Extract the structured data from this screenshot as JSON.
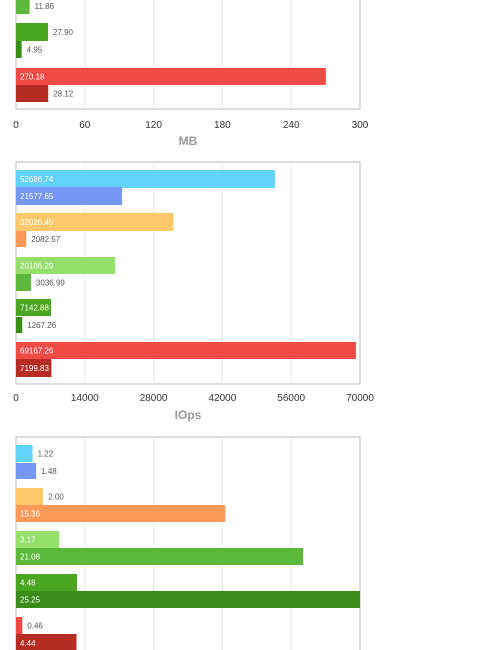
{
  "chart_data": [
    {
      "type": "bar",
      "orientation": "horizontal",
      "xlabel": "MB",
      "xlim": [
        0,
        300
      ],
      "xticks": [
        "0",
        "60",
        "120",
        "180",
        "240",
        "300"
      ],
      "grid": true,
      "bars": [
        {
          "value": 11.86,
          "label": "11.86",
          "color": "#5cb83a"
        },
        {
          "value": 27.9,
          "label": "27.90",
          "color": "#4aa520"
        },
        {
          "value": 4.95,
          "label": "4.95",
          "color": "#3a8c18"
        },
        {
          "value": 270.18,
          "label": "270.18",
          "color": "#ef4a44"
        },
        {
          "value": 28.12,
          "label": "28.12",
          "color": "#b62c23"
        }
      ]
    },
    {
      "type": "bar",
      "orientation": "horizontal",
      "xlabel": "IOps",
      "xlim": [
        0,
        70000
      ],
      "xticks": [
        "0",
        "14000",
        "28000",
        "42000",
        "56000",
        "70000"
      ],
      "grid": true,
      "bars": [
        {
          "value": 52686.74,
          "label": "52686.74",
          "color": "#62d3fa"
        },
        {
          "value": 21577.65,
          "label": "21577.65",
          "color": "#7397f3"
        },
        {
          "value": 32026.45,
          "label": "32026.45",
          "color": "#fcc869"
        },
        {
          "value": 2082.57,
          "label": "2082.57",
          "color": "#fb9a58"
        },
        {
          "value": 20186.29,
          "label": "20186.29",
          "color": "#94e06a"
        },
        {
          "value": 3036.99,
          "label": "3036.99",
          "color": "#5cb83a"
        },
        {
          "value": 7142.88,
          "label": "7142.88",
          "color": "#4aa520"
        },
        {
          "value": 1267.26,
          "label": "1267.26",
          "color": "#3a8c18"
        },
        {
          "value": 69167.26,
          "label": "69167.26",
          "color": "#ef4a44"
        },
        {
          "value": 7199.83,
          "label": "7199.83",
          "color": "#b62c23"
        }
      ]
    },
    {
      "type": "bar",
      "orientation": "horizontal",
      "xlim": [
        0,
        25.25
      ],
      "grid": true,
      "bars": [
        {
          "value": 1.22,
          "label": "1.22",
          "color": "#62d3fa"
        },
        {
          "value": 1.48,
          "label": "1.48",
          "color": "#7397f3"
        },
        {
          "value": 2.0,
          "label": "2.00",
          "color": "#fcc869"
        },
        {
          "value": 15.36,
          "label": "15.36",
          "color": "#fb9a58"
        },
        {
          "value": 3.17,
          "label": "3.17",
          "color": "#94e06a"
        },
        {
          "value": 21.08,
          "label": "21.08",
          "color": "#5cb83a"
        },
        {
          "value": 4.48,
          "label": "4.48",
          "color": "#4aa520"
        },
        {
          "value": 25.25,
          "label": "25.25",
          "color": "#3a8c18"
        },
        {
          "value": 0.46,
          "label": "0.46",
          "color": "#ef4a44"
        },
        {
          "value": 4.44,
          "label": "4.44",
          "color": "#b62c23"
        }
      ]
    }
  ]
}
